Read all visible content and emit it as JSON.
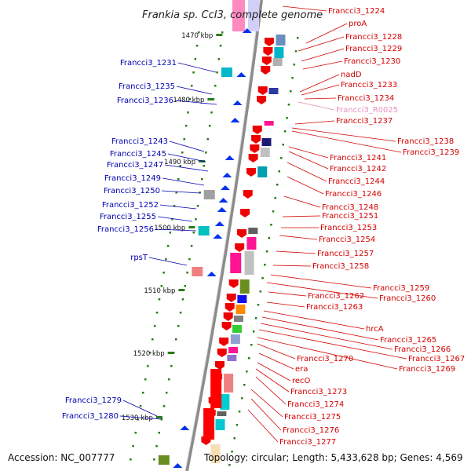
{
  "title": "Frankia sp. CcI3, complete genome",
  "footer": {
    "accession": "Accession: NC_007777",
    "summary": "Topology: circular; Length: 5,433,628 bp; Genes: 4,569"
  },
  "colors": {
    "left_labels": "#0000b0",
    "right_labels": "#d40000",
    "rna_label": "#e890c0",
    "strand_forward": "#0033ee",
    "strand_reverse": "#ee0000",
    "tick_dot": "#2a7a1a",
    "backbone": "#909090"
  },
  "kbp_marks": [
    {
      "label": "1470 kbp"
    },
    {
      "label": "1480 kbp"
    },
    {
      "label": "1490 kbp"
    },
    {
      "label": "1500 kbp"
    },
    {
      "label": "1510 kbp"
    },
    {
      "label": "1520 kbp"
    },
    {
      "label": "1530 kbp"
    }
  ],
  "left_labels": [
    {
      "text": "Francci3_1231"
    },
    {
      "text": "Francci3_1235"
    },
    {
      "text": "Francci3_1236"
    },
    {
      "text": "Francci3_1243"
    },
    {
      "text": "Francci3_1245"
    },
    {
      "text": "Francci3_1247"
    },
    {
      "text": "Francci3_1249"
    },
    {
      "text": "Francci3_1250"
    },
    {
      "text": "Francci3_1252"
    },
    {
      "text": "Francci3_1255"
    },
    {
      "text": "Francci3_1256"
    },
    {
      "text": "rpsT"
    },
    {
      "text": "Francci3_1279"
    },
    {
      "text": "Francci3_1280"
    }
  ],
  "right_labels": [
    {
      "text": "Francci3_1224"
    },
    {
      "text": "proA"
    },
    {
      "text": "Francci3_1228"
    },
    {
      "text": "Francci3_1229"
    },
    {
      "text": "Francci3_1230"
    },
    {
      "text": "nadD"
    },
    {
      "text": "Francci3_1233"
    },
    {
      "text": "Francci3_1234"
    },
    {
      "text": "Francci3_R0025"
    },
    {
      "text": "Francci3_1237"
    },
    {
      "text": "Francci3_1238"
    },
    {
      "text": "Francci3_1239"
    },
    {
      "text": "Francci3_1241"
    },
    {
      "text": "Francci3_1242"
    },
    {
      "text": "Francci3_1244"
    },
    {
      "text": "Francci3_1246"
    },
    {
      "text": "Francci3_1248"
    },
    {
      "text": "Francci3_1251"
    },
    {
      "text": "Francci3_1253"
    },
    {
      "text": "Francci3_1254"
    },
    {
      "text": "Francci3_1257"
    },
    {
      "text": "Francci3_1258"
    },
    {
      "text": "Francci3_1259"
    },
    {
      "text": "Francci3_1262"
    },
    {
      "text": "Francci3_1260"
    },
    {
      "text": "Francci3_1263"
    },
    {
      "text": "hrcA"
    },
    {
      "text": "Francci3_1265"
    },
    {
      "text": "Francci3_1266"
    },
    {
      "text": "Francci3_1267"
    },
    {
      "text": "Francci3_1270"
    },
    {
      "text": "Francci3_1269"
    },
    {
      "text": "era"
    },
    {
      "text": "recO"
    },
    {
      "text": "Francci3_1273"
    },
    {
      "text": "Francci3_1274"
    },
    {
      "text": "Francci3_1275"
    },
    {
      "text": "Francci3_1276"
    },
    {
      "text": "Francci3_1277"
    }
  ]
}
